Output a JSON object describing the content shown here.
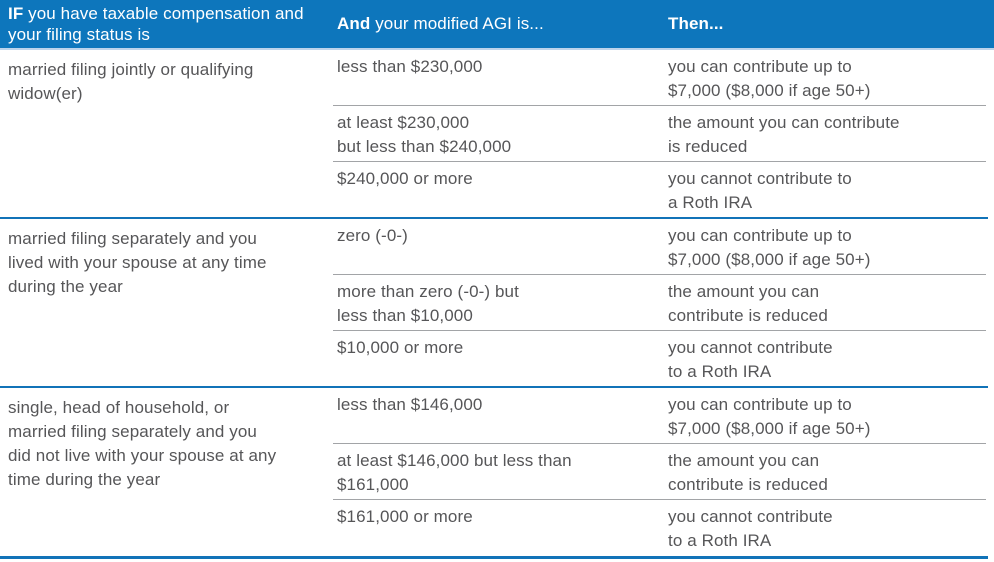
{
  "colors": {
    "header_bg": "#0d76bc",
    "divider_blue": "#1173b8",
    "divider_gray": "#a2a4a7",
    "header_underline": "#bcd4ec",
    "header_text": "#ffffff",
    "body_text": "#565658"
  },
  "header": {
    "col1": {
      "bold": "IF",
      "rest": "you have taxable compensation and your filing status is"
    },
    "col2": {
      "bold": "And",
      "rest": "your modified AGI is..."
    },
    "col3": {
      "bold": "Then..."
    }
  },
  "groups": [
    {
      "status": "married filing jointly or qualifying\nwidow(er)",
      "rows": [
        {
          "agi": "less than $230,000",
          "then": "you can contribute up to\n$7,000 ($8,000 if age 50+)"
        },
        {
          "agi": "at least $230,000\nbut less than $240,000",
          "then": "the amount you can contribute\nis reduced"
        },
        {
          "agi": "$240,000 or more",
          "then": "you cannot contribute to\na Roth IRA"
        }
      ]
    },
    {
      "status": "married filing separately and you\nlived with your spouse at any time\nduring the year",
      "rows": [
        {
          "agi": "zero (-0-)",
          "then": "you can contribute up to\n$7,000 ($8,000 if age 50+)"
        },
        {
          "agi": "more than zero (-0-) but\nless than $10,000",
          "then": "the amount you can\ncontribute is reduced"
        },
        {
          "agi": "$10,000 or more",
          "then": "you cannot contribute\nto a Roth IRA"
        }
      ]
    },
    {
      "status": "single, head of household, or\nmarried filing separately and you\ndid not live with your spouse at any\ntime during the year",
      "rows": [
        {
          "agi": "less than $146,000",
          "then": "you can contribute up to\n$7,000 ($8,000 if age 50+)"
        },
        {
          "agi": "at least $146,000 but less than\n$161,000",
          "then": "the amount you can\ncontribute is reduced"
        },
        {
          "agi": "$161,000 or more",
          "then": "you cannot contribute\nto a Roth IRA"
        }
      ]
    }
  ]
}
